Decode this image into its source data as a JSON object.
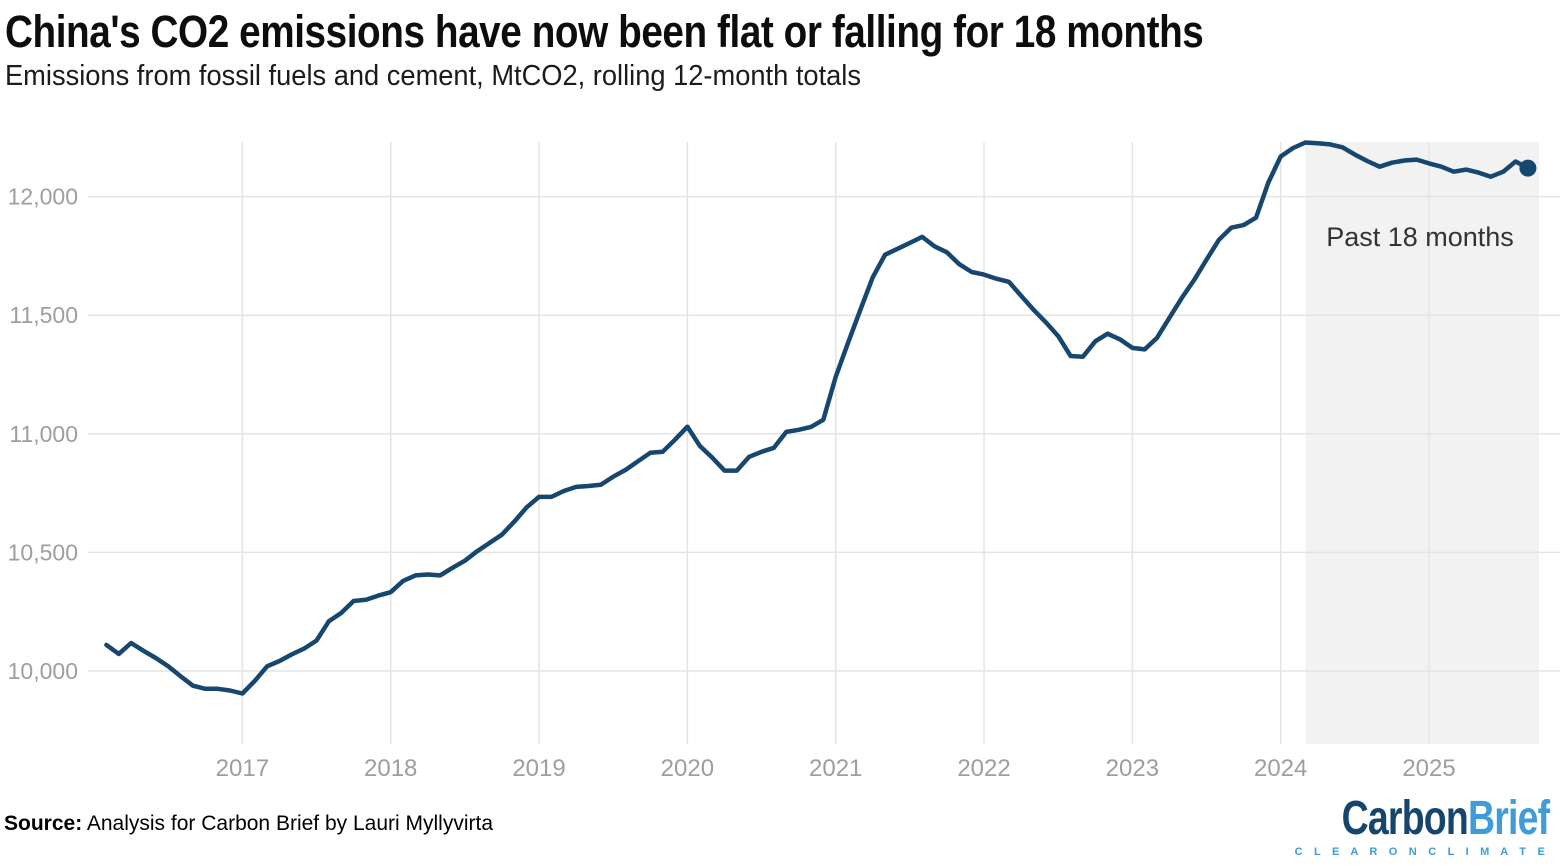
{
  "header": {
    "title": "China's CO2 emissions have now been flat or falling for 18 months",
    "subtitle": "Emissions from fossil fuels and cement, MtCO2, rolling 12-month totals"
  },
  "source": {
    "label": "Source:",
    "text": " Analysis for Carbon Brief by Lauri Myllyvirta"
  },
  "logo": {
    "carbon": "Carbon",
    "brief": "Brief",
    "tagline": "C L E A R   O N   C L I M A T E"
  },
  "colors": {
    "line": "#17476f",
    "grid": "#e4e4e4",
    "band": "#f2f2f2",
    "axis_label": "#9e9e9e",
    "annotation": "#333333"
  },
  "chart_data": {
    "type": "line",
    "title": "China's CO2 emissions have now been flat or falling for 18 months",
    "subtitle": "Emissions from fossil fuels and cement, MtCO2, rolling 12-month totals",
    "unit": "MtCO2",
    "cadence": "monthly",
    "start_month": "2016-02",
    "end_month": "2025-09",
    "x_ticks": [
      2017,
      2018,
      2019,
      2020,
      2021,
      2022,
      2023,
      2024,
      2025
    ],
    "y_ticks": [
      10000,
      10500,
      11000,
      11500,
      12000
    ],
    "ylim": [
      9690,
      12230
    ],
    "grid": "on",
    "legend": "none",
    "annotation_label": "Past 18 months",
    "highlight_band": {
      "start": "2024-03",
      "end": "2025-09"
    },
    "end_point_marker": true,
    "series": [
      {
        "name": "CO2 emissions, rolling 12-month total (MtCO2)",
        "values": [
          10110,
          10072,
          10118,
          10085,
          10055,
          10020,
          9978,
          9938,
          9925,
          9925,
          9918,
          9905,
          9958,
          10020,
          10042,
          10070,
          10095,
          10128,
          10210,
          10245,
          10295,
          10300,
          10318,
          10332,
          10380,
          10403,
          10407,
          10403,
          10435,
          10465,
          10505,
          10540,
          10575,
          10630,
          10690,
          10734,
          10734,
          10759,
          10776,
          10780,
          10785,
          10819,
          10848,
          10884,
          10920,
          10924,
          10975,
          11030,
          10950,
          10900,
          10845,
          10845,
          10903,
          10924,
          10941,
          11008,
          11017,
          11029,
          11059,
          11240,
          11384,
          11523,
          11660,
          11755,
          11780,
          11805,
          11830,
          11790,
          11765,
          11715,
          11682,
          11671,
          11654,
          11641,
          11582,
          11523,
          11470,
          11412,
          11328,
          11325,
          11390,
          11422,
          11398,
          11362,
          11356,
          11405,
          11489,
          11573,
          11649,
          11734,
          11818,
          11869,
          11880,
          11911,
          12059,
          12169,
          12205,
          12228,
          12225,
          12220,
          12208,
          12177,
          12150,
          12126,
          12143,
          12152,
          12156,
          12140,
          12126,
          12105,
          12114,
          12101,
          12084,
          12105,
          12148,
          12120
        ]
      }
    ]
  }
}
